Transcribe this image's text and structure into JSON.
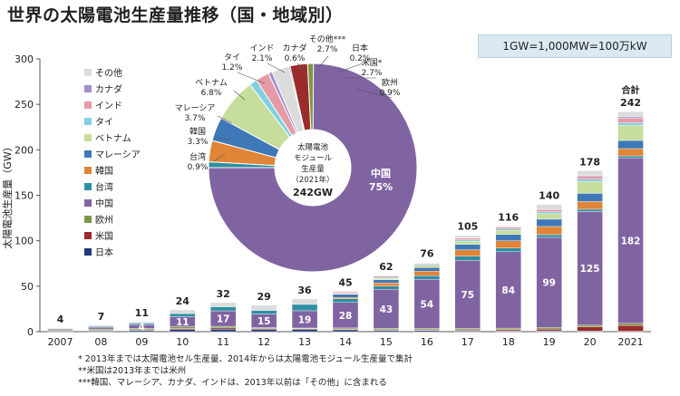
{
  "title": "世界の太陽電池生産量推移（国・地域別）",
  "unit_note": "1GW=1,000MW=100万kW",
  "notes": [
    "* 2013年までは太陽電池セル生産量、2014年からは太陽電池モジュール生産量で集計",
    "**米国は2013年までは米州",
    "***韓国、マレーシア、カナダ、インドは、2013年以前は「その他」に含まれる"
  ],
  "chart_data": [
    {
      "type": "bar",
      "stacked": true,
      "categories": [
        "2007",
        "08",
        "09",
        "10",
        "11",
        "12",
        "13",
        "14",
        "15",
        "16",
        "17",
        "18",
        "19",
        "20",
        "2021"
      ],
      "ylabel": "太陽電池生産量（GW）",
      "ylim": [
        0,
        300
      ],
      "yticks": [
        0,
        50,
        100,
        150,
        200,
        250,
        300
      ],
      "totals": [
        4,
        7,
        11,
        24,
        32,
        29,
        36,
        45,
        62,
        76,
        105,
        116,
        140,
        178,
        242
      ],
      "total_label_last": "合計",
      "china_labels": [
        null,
        null,
        4,
        11,
        17,
        15,
        19,
        28,
        43,
        54,
        75,
        84,
        99,
        125,
        182
      ],
      "legend_position": "left inside",
      "colors": {
        "その他": "#dcdcdc",
        "カナダ": "#a48fcb",
        "インド": "#e59aa6",
        "タイ": "#7fd0e0",
        "ベトナム": "#c6dd9c",
        "マレーシア": "#3f78b8",
        "韓国": "#e08438",
        "台湾": "#2e8fa0",
        "中国": "#8064a2",
        "欧州": "#7f9645",
        "米国": "#9b2c2c",
        "日本": "#1f3a7a"
      },
      "legend": [
        "その他",
        "カナダ",
        "インド",
        "タイ",
        "ベトナム",
        "マレーシア",
        "韓国",
        "台湾",
        "中国",
        "欧州",
        "米国",
        "日本"
      ],
      "series": [
        {
          "name": "日本",
          "values": [
            0.9,
            1.0,
            1.5,
            2.2,
            2.7,
            2.4,
            2.5,
            2.1,
            1.5,
            1.2,
            1.0,
            0.9,
            0.9,
            0.8,
            0.4
          ]
        },
        {
          "name": "米国",
          "values": [
            0.3,
            0.4,
            0.6,
            1.2,
            1.4,
            1.0,
            0.7,
            0.8,
            0.6,
            0.8,
            1.0,
            1.2,
            2.0,
            4.5,
            6.5
          ]
        },
        {
          "name": "欧州",
          "values": [
            1.0,
            1.5,
            1.5,
            2.0,
            1.8,
            1.0,
            0.8,
            1.2,
            1.5,
            1.5,
            1.5,
            1.8,
            1.8,
            1.8,
            2.2
          ]
        },
        {
          "name": "中国",
          "values": [
            1.2,
            2.0,
            4.0,
            11.0,
            17.0,
            15.0,
            19.0,
            28.0,
            43.0,
            54.0,
            75.0,
            84.0,
            99.0,
            125.0,
            182.0
          ]
        },
        {
          "name": "台湾",
          "values": [
            0.4,
            1.0,
            1.5,
            3.5,
            4.5,
            4.0,
            7.0,
            4.0,
            3.5,
            4.0,
            4.5,
            4.0,
            3.0,
            2.5,
            2.2
          ]
        },
        {
          "name": "韓国",
          "values": [
            0,
            0,
            0,
            0,
            0,
            0,
            0,
            1.5,
            3.5,
            5.0,
            7.0,
            8.0,
            9.0,
            8.5,
            8.0
          ]
        },
        {
          "name": "マレーシア",
          "values": [
            0,
            0,
            0,
            0,
            0,
            0,
            0,
            3.5,
            3.5,
            4.0,
            6.0,
            7.0,
            8.0,
            9.0,
            9.0
          ]
        },
        {
          "name": "ベトナム",
          "values": [
            0,
            0,
            0,
            0,
            0,
            0,
            0,
            0.5,
            1.5,
            2.5,
            3.5,
            4.5,
            6.0,
            13.0,
            16.5
          ]
        },
        {
          "name": "タイ",
          "values": [
            0,
            0,
            0,
            0,
            0,
            0,
            0,
            0.5,
            1.0,
            1.0,
            1.5,
            1.5,
            2.0,
            2.5,
            2.9
          ]
        },
        {
          "name": "インド",
          "values": [
            0,
            0,
            0,
            0,
            0,
            0,
            0,
            1.5,
            1.5,
            1.0,
            2.0,
            2.0,
            2.5,
            3.0,
            5.1
          ]
        },
        {
          "name": "カナダ",
          "values": [
            0,
            0,
            0,
            0,
            0,
            0,
            0,
            0.3,
            0.5,
            0.5,
            0.5,
            0.5,
            0.8,
            1.0,
            1.5
          ]
        },
        {
          "name": "その他",
          "values": [
            0.2,
            1.1,
            1.9,
            4.1,
            4.6,
            5.6,
            6.0,
            0.6,
            0.4,
            0.5,
            2.5,
            0.6,
            5.0,
            5.4,
            5.7
          ]
        }
      ]
    },
    {
      "type": "pie",
      "donut": true,
      "center_lines": [
        "太陽電池",
        "モジュール",
        "生産量",
        "（2021年）",
        "242GW"
      ],
      "slices": [
        {
          "name": "中国",
          "percent": 75,
          "value_label": "75%"
        },
        {
          "name": "台湾",
          "percent": 0.9,
          "value_label": "0.9%"
        },
        {
          "name": "韓国",
          "percent": 3.3,
          "value_label": "3.3%"
        },
        {
          "name": "マレーシア",
          "percent": 3.7,
          "value_label": "3.7%"
        },
        {
          "name": "ベトナム",
          "percent": 6.8,
          "value_label": "6.8%"
        },
        {
          "name": "タイ",
          "percent": 1.2,
          "value_label": "1.2%"
        },
        {
          "name": "インド",
          "percent": 2.1,
          "value_label": "2.1%"
        },
        {
          "name": "カナダ",
          "percent": 0.6,
          "value_label": "0.6%"
        },
        {
          "name": "その他***",
          "percent": 2.7,
          "value_label": "2.7%"
        },
        {
          "name": "日本",
          "percent": 0.2,
          "value_label": "0.2%"
        },
        {
          "name": "米国*",
          "percent": 2.7,
          "value_label": "2.7%"
        },
        {
          "name": "欧州",
          "percent": 0.9,
          "value_label": "0.9%"
        }
      ]
    }
  ]
}
